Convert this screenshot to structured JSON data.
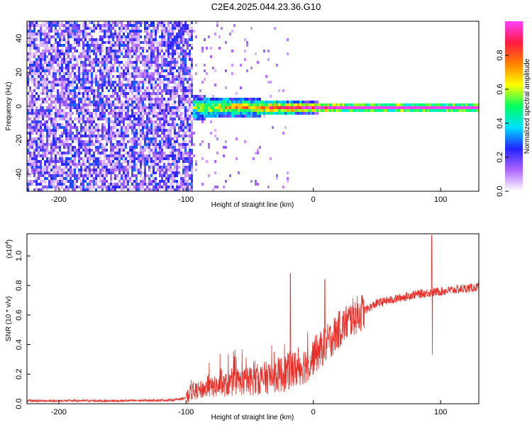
{
  "title": "C2E4.2025.044.23.36.G10",
  "chart_data": [
    {
      "type": "heatmap",
      "xlabel": "Height of straight line (km)",
      "ylabel": "Frequency (Hz)",
      "xlim": [
        -225,
        130
      ],
      "ylim": [
        -50,
        50
      ],
      "xticks": [
        -200,
        -100,
        0,
        100
      ],
      "yticks": [
        -40,
        -20,
        0,
        20,
        40
      ],
      "colorbar": {
        "label": "Normalized spectral amplitude",
        "range": [
          0,
          1
        ],
        "ticks": [
          "0.0",
          "0.2",
          "0.4",
          "0.6",
          "0.8"
        ],
        "colors": [
          "#ffffff",
          "#b066ff",
          "#2222ff",
          "#00e0ff",
          "#00ff60",
          "#ffff00",
          "#ff8000",
          "#ff1a40",
          "#ff40ff"
        ]
      },
      "features": {
        "noise_region_end_km": -95,
        "signal_start_km": -95,
        "signal_center_hz": 0,
        "diagonal_feature_km": [
          -115,
          -100
        ],
        "diagonal_feature_hz": [
          35,
          50
        ]
      }
    },
    {
      "type": "line",
      "xlabel": "Height of straight line (km)",
      "ylabel": "SNR (10 * v/v)",
      "scale_label": "(x10",
      "scale_exp": "4",
      "xlim": [
        -225,
        130
      ],
      "ylim": [
        0,
        1.15
      ],
      "xticks": [
        -200,
        -100,
        0,
        100
      ],
      "yticks": [
        "0.0",
        "0.2",
        "0.4",
        "0.6",
        "0.8",
        "1.0"
      ],
      "color": "#e8302a",
      "envelope": {
        "x": [
          -225,
          -150,
          -110,
          -100,
          -95,
          -80,
          -60,
          -40,
          -25,
          -15,
          -5,
          0,
          10,
          20,
          30,
          40,
          50,
          60,
          70,
          80,
          90,
          100,
          110,
          120,
          130
        ],
        "y": [
          0.02,
          0.02,
          0.025,
          0.04,
          0.08,
          0.11,
          0.14,
          0.17,
          0.2,
          0.23,
          0.27,
          0.32,
          0.4,
          0.5,
          0.58,
          0.63,
          0.68,
          0.7,
          0.72,
          0.74,
          0.75,
          0.76,
          0.77,
          0.78,
          0.79
        ]
      },
      "spikes": [
        {
          "x": -18,
          "y": 0.88
        },
        {
          "x": 9,
          "y": 0.84
        },
        {
          "x": 93,
          "y": 1.14
        },
        {
          "x": 93.5,
          "y": 0.33
        }
      ]
    }
  ]
}
